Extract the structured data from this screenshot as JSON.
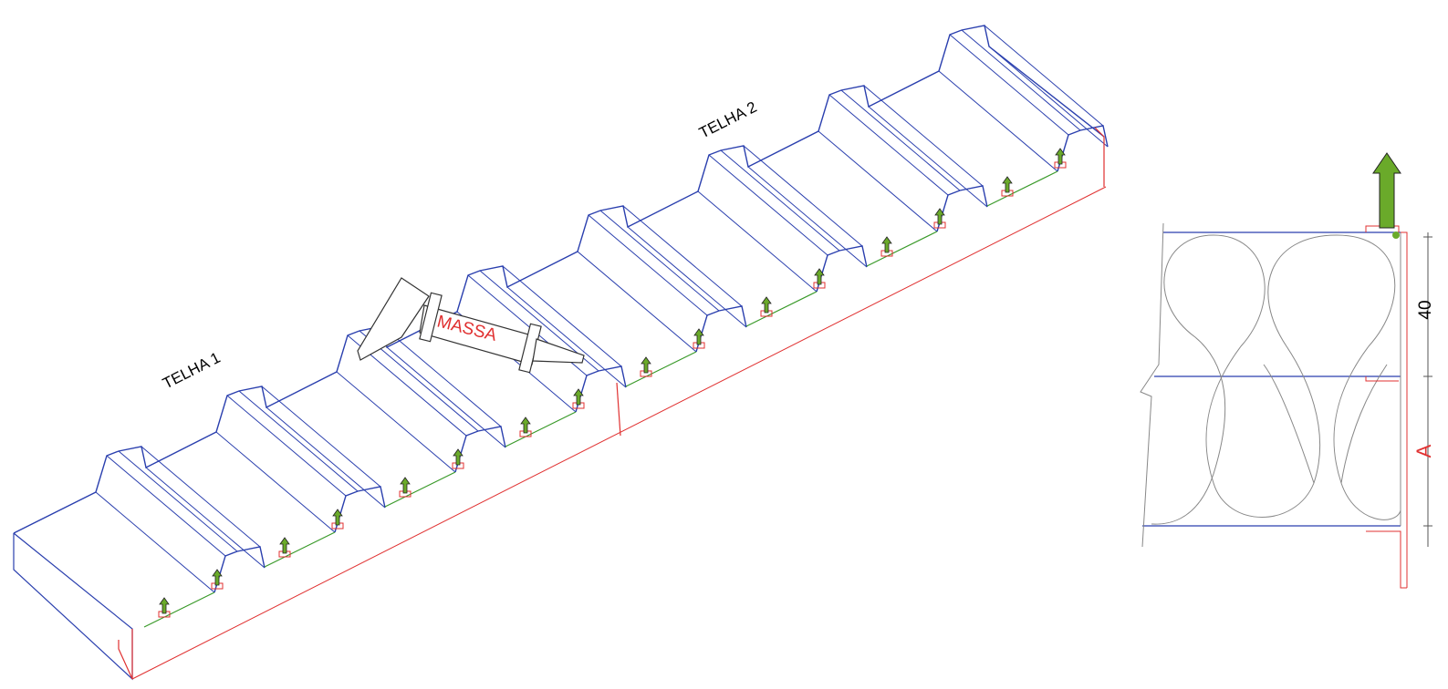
{
  "drawing": {
    "tiles": [
      {
        "label": "TELHA 1"
      },
      {
        "label": "TELHA 2"
      }
    ],
    "tool": {
      "label": "MASSA"
    },
    "section": {
      "dimension": "40",
      "label": "A"
    }
  }
}
